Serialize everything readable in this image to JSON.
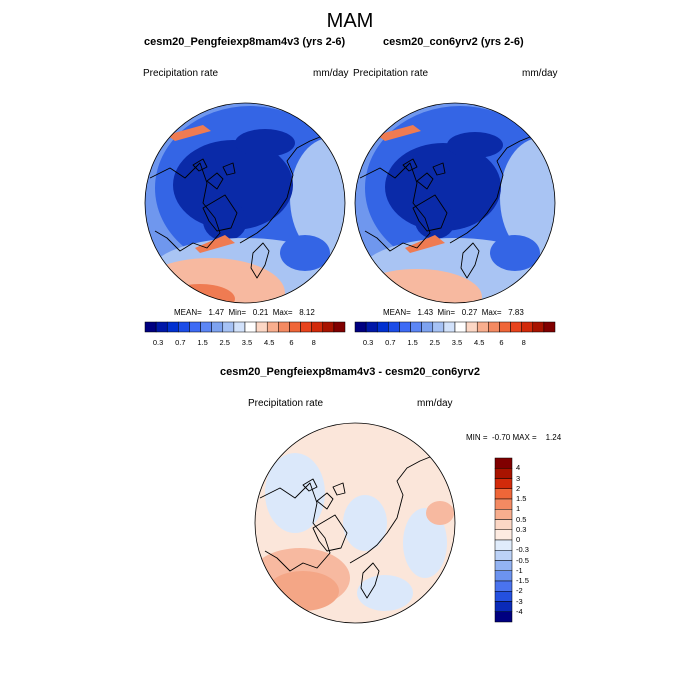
{
  "figure": {
    "title": "MAM"
  },
  "chart_data": [
    {
      "type": "heatmap",
      "projection": "polar-stereographic (north)",
      "title": "cesm20_Pengfeiexp8mam4v3 (yrs 2-6)",
      "left_label": "Precipitation rate",
      "right_label": "mm/day",
      "stats": {
        "mean_label": "MEAN=",
        "mean": "1.47",
        "min_label": "Min=",
        "min": "0.21",
        "max_label": "Max=",
        "max": "8.12"
      },
      "colorbar": {
        "orientation": "horizontal",
        "levels": [
          "0.3",
          "0.7",
          "1.5",
          "2.5",
          "3.5",
          "4.5",
          "6",
          "8"
        ],
        "colors": [
          "#000080",
          "#0018a8",
          "#0030d0",
          "#1c4de8",
          "#3d6bf5",
          "#5c86f5",
          "#7ea3f0",
          "#a6c2f5",
          "#d2e2fb",
          "#ffffff",
          "#fcd7c5",
          "#f8ae8e",
          "#f48a62",
          "#ef6638",
          "#e8431c",
          "#d22a0a",
          "#a81300",
          "#800000"
        ]
      }
    },
    {
      "type": "heatmap",
      "projection": "polar-stereographic (north)",
      "title": "cesm20_con6yrv2 (yrs 2-6)",
      "left_label": "Precipitation rate",
      "right_label": "mm/day",
      "stats": {
        "mean_label": "MEAN=",
        "mean": "1.43",
        "min_label": "Min=",
        "min": "0.27",
        "max_label": "Max=",
        "max": "7.83"
      },
      "colorbar": {
        "orientation": "horizontal",
        "levels": [
          "0.3",
          "0.7",
          "1.5",
          "2.5",
          "3.5",
          "4.5",
          "6",
          "8"
        ],
        "colors": [
          "#000080",
          "#0018a8",
          "#0030d0",
          "#1c4de8",
          "#3d6bf5",
          "#5c86f5",
          "#7ea3f0",
          "#a6c2f5",
          "#d2e2fb",
          "#ffffff",
          "#fcd7c5",
          "#f8ae8e",
          "#f48a62",
          "#ef6638",
          "#e8431c",
          "#d22a0a",
          "#a81300",
          "#800000"
        ]
      }
    },
    {
      "type": "heatmap",
      "projection": "polar-stereographic (north)",
      "title": "cesm20_Pengfeiexp8mam4v3 - cesm20_con6yrv2",
      "left_label": "Precipitation rate",
      "right_label": "mm/day",
      "stats_text": "MIN =  -0.70 MAX =    1.24",
      "colorbar": {
        "orientation": "vertical",
        "levels": [
          "4",
          "3",
          "2",
          "1.5",
          "1",
          "0.5",
          "0.3",
          "0",
          "-0.3",
          "-0.5",
          "-1",
          "-1.5",
          "-2",
          "-3",
          "-4"
        ],
        "colors": [
          "#800000",
          "#a81300",
          "#d22a0a",
          "#ef6638",
          "#f48a62",
          "#f8ae8e",
          "#fcd7c5",
          "#fdebe1",
          "#e0ecfb",
          "#bcd2f7",
          "#93b3f2",
          "#6c93f0",
          "#4a73ee",
          "#2450e0",
          "#0a2ab8",
          "#000080"
        ]
      }
    }
  ],
  "colors": {
    "deep_blue": "#0a2aa8",
    "mid_blue": "#3465e5",
    "light_blue": "#6f97ee",
    "pale_blue": "#a9c4f3",
    "salmon": "#f7b9a0",
    "orange": "#ef7b52",
    "diff_base": "#fbe6da",
    "diff_pale_blue": "#dbe8fa",
    "diff_orange": "#f4a686",
    "coast": "#000000"
  }
}
